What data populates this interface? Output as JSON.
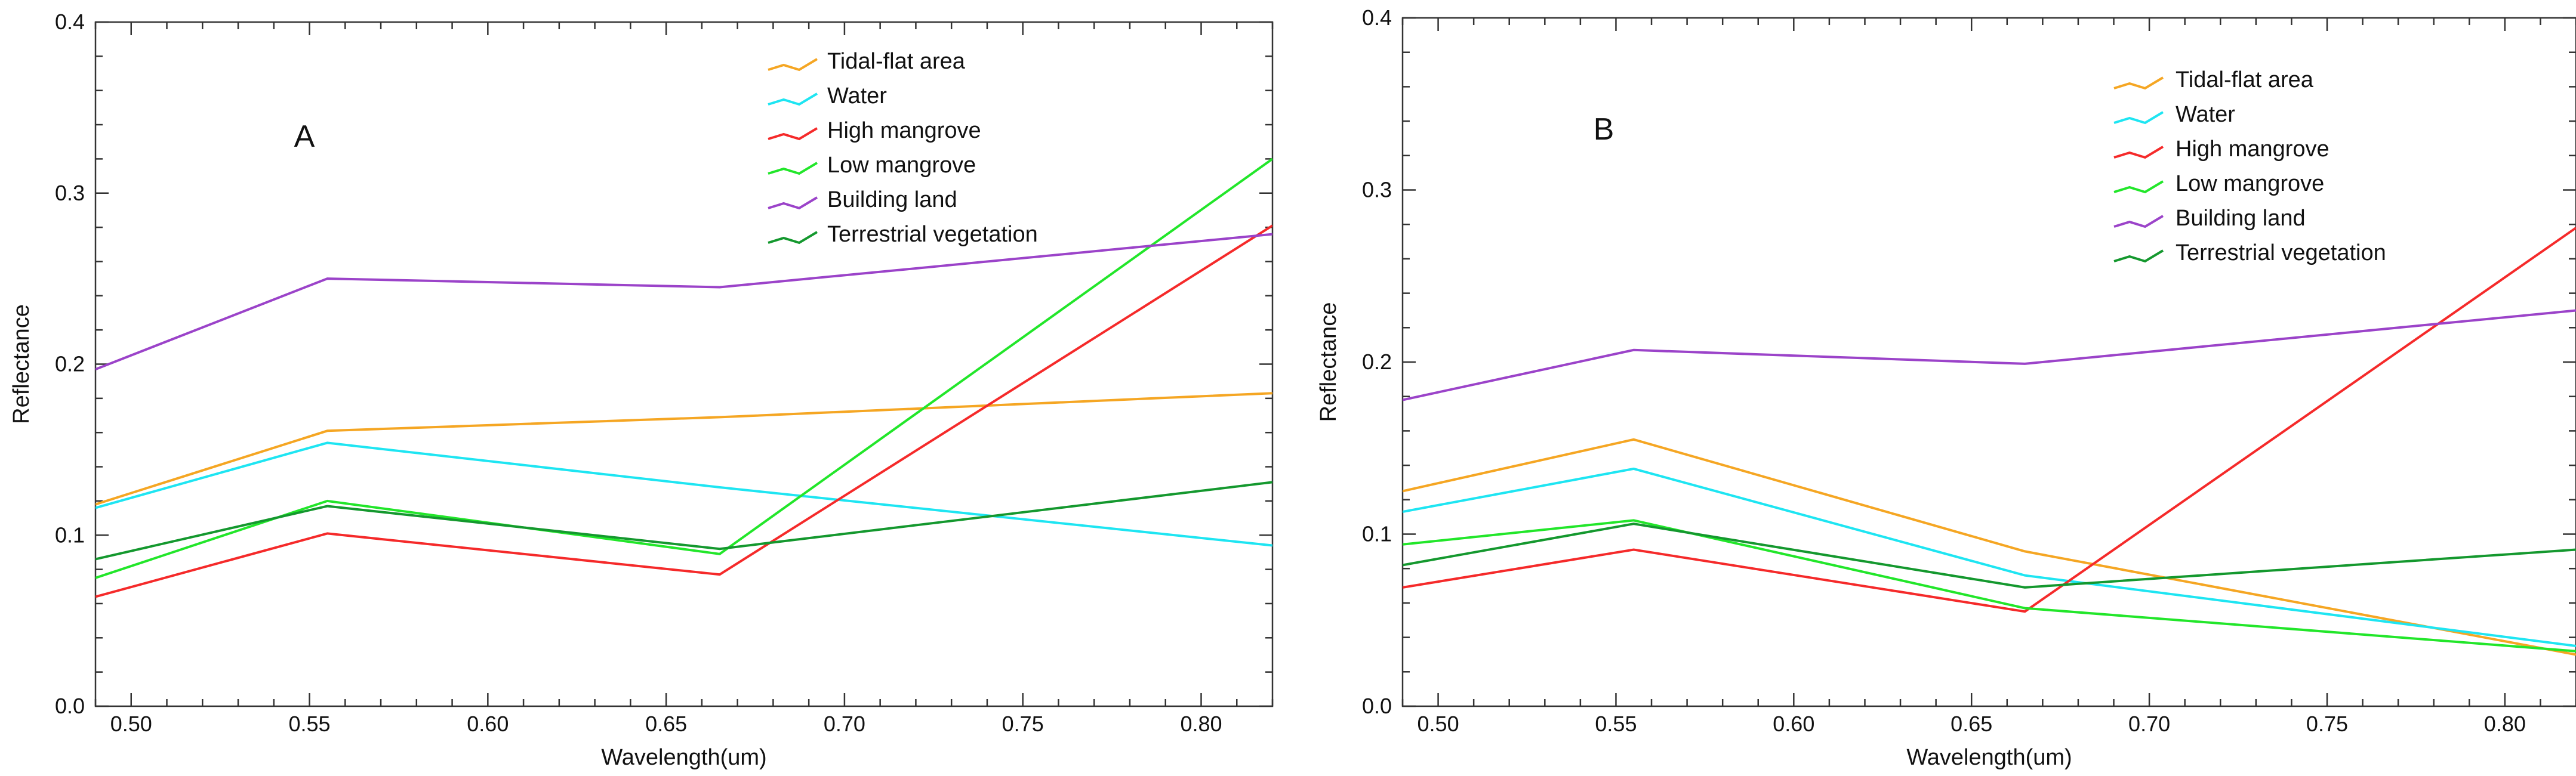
{
  "chart_data": [
    {
      "type": "line",
      "panel_label": "A",
      "title": "",
      "xlabel": "Wavelength(um)",
      "ylabel": "Reflectance",
      "xlim": [
        0.49,
        0.82
      ],
      "ylim": [
        0.0,
        0.4
      ],
      "x": [
        0.49,
        0.555,
        0.665,
        0.82
      ],
      "xticks": [
        0.5,
        0.55,
        0.6,
        0.65,
        0.7,
        0.75,
        0.8
      ],
      "xtick_labels": [
        "0.50",
        "0.55",
        "0.60",
        "0.65",
        "0.70",
        "0.75",
        "0.80"
      ],
      "yticks": [
        0.0,
        0.1,
        0.2,
        0.3,
        0.4
      ],
      "ytick_labels": [
        "0.0",
        "0.1",
        "0.2",
        "0.3",
        "0.4"
      ],
      "legend_position": "top-right",
      "series": [
        {
          "name": "Tidal-flat area",
          "color": "#f5a623",
          "values": [
            0.118,
            0.161,
            0.169,
            0.183
          ]
        },
        {
          "name": "Water",
          "color": "#1ee5f2",
          "values": [
            0.116,
            0.154,
            0.128,
            0.094
          ]
        },
        {
          "name": "High mangrove",
          "color": "#f52a2a",
          "values": [
            0.064,
            0.101,
            0.077,
            0.281
          ]
        },
        {
          "name": "Low mangrove",
          "color": "#22e62a",
          "values": [
            0.075,
            0.12,
            0.089,
            0.32
          ]
        },
        {
          "name": "Building land",
          "color": "#9b43c9",
          "values": [
            0.197,
            0.25,
            0.245,
            0.276
          ]
        },
        {
          "name": "Terrestrial vegetation",
          "color": "#14982e",
          "values": [
            0.086,
            0.117,
            0.092,
            0.131
          ]
        }
      ]
    },
    {
      "type": "line",
      "panel_label": "B",
      "title": "",
      "xlabel": "Wavelength(um)",
      "ylabel": "Reflectance",
      "xlim": [
        0.49,
        0.82
      ],
      "ylim": [
        0.0,
        0.4
      ],
      "x": [
        0.49,
        0.555,
        0.665,
        0.82
      ],
      "xticks": [
        0.5,
        0.55,
        0.6,
        0.65,
        0.7,
        0.75,
        0.8
      ],
      "xtick_labels": [
        "0.50",
        "0.55",
        "0.60",
        "0.65",
        "0.70",
        "0.75",
        "0.80"
      ],
      "yticks": [
        0.0,
        0.1,
        0.2,
        0.3,
        0.4
      ],
      "ytick_labels": [
        "0.0",
        "0.1",
        "0.2",
        "0.3",
        "0.4"
      ],
      "legend_position": "top-right",
      "series": [
        {
          "name": "Tidal-flat area",
          "color": "#f5a623",
          "values": [
            0.125,
            0.155,
            0.09,
            0.03
          ]
        },
        {
          "name": "Water",
          "color": "#1ee5f2",
          "values": [
            0.113,
            0.138,
            0.076,
            0.035
          ]
        },
        {
          "name": "High mangrove",
          "color": "#f52a2a",
          "values": [
            0.069,
            0.091,
            0.055,
            0.278
          ]
        },
        {
          "name": "Low mangrove",
          "color": "#22e62a",
          "values": [
            0.094,
            0.108,
            0.057,
            0.032
          ]
        },
        {
          "name": "Building land",
          "color": "#9b43c9",
          "values": [
            0.178,
            0.207,
            0.199,
            0.23
          ]
        },
        {
          "name": "Terrestrial vegetation",
          "color": "#14982e",
          "values": [
            0.082,
            0.106,
            0.069,
            0.091
          ]
        }
      ]
    }
  ]
}
